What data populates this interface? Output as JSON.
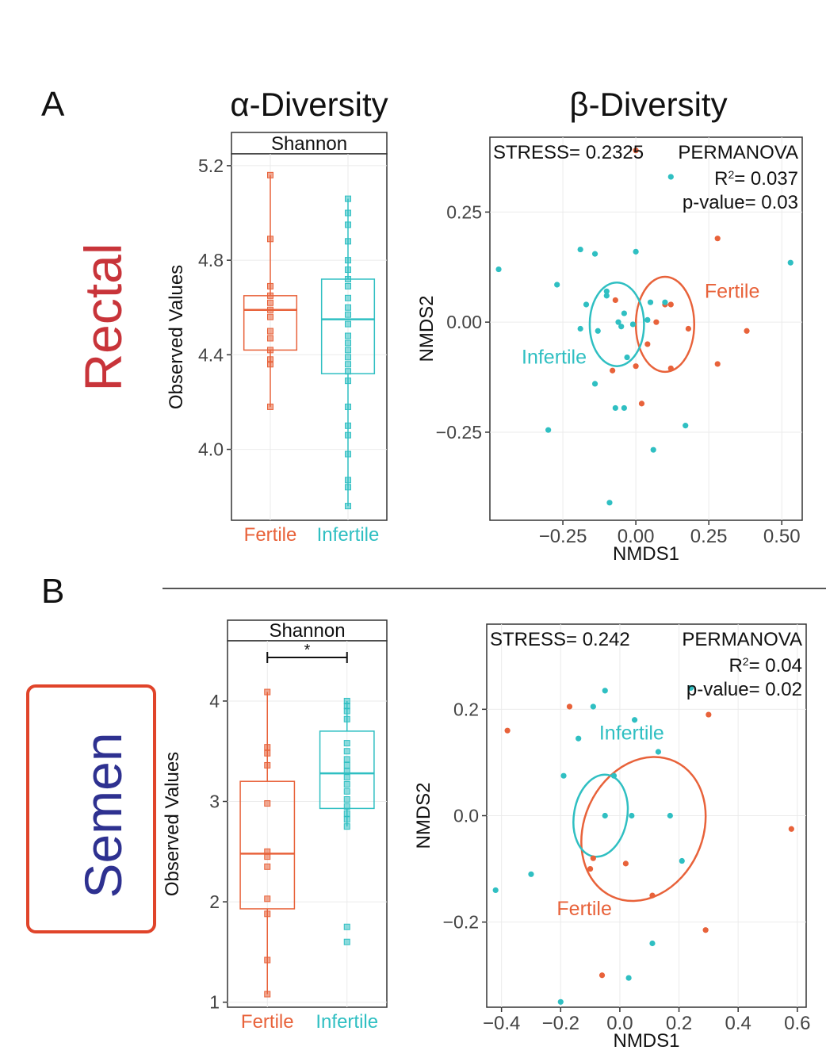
{
  "colors": {
    "fertile": "#E8623A",
    "infertile": "#2FBFC2",
    "rectal_label": "#C8343A",
    "semen_label": "#2E3190",
    "semen_box": "#E0442A",
    "axis": "#333333",
    "grid": "#EBEBEB"
  },
  "labels": {
    "panel_a": "A",
    "panel_b": "B",
    "alpha_heading": "α-Diversity",
    "beta_heading": "β-Diversity",
    "row_a": "Rectal",
    "row_b": "Semen"
  },
  "chart_data": [
    {
      "id": "rectal_alpha",
      "type": "box",
      "strip": "Shannon",
      "ylabel": "Observed Values",
      "ylim": [
        3.7,
        5.25
      ],
      "yticks": [
        4.0,
        4.4,
        4.8,
        5.2
      ],
      "yticklabels": [
        "4.0",
        "4.4",
        "4.8",
        "5.2"
      ],
      "categories": [
        "Fertile",
        "Infertile"
      ],
      "significance": "",
      "boxes": [
        {
          "group": "Fertile",
          "q1": 4.42,
          "median": 4.59,
          "q3": 4.65,
          "whisker_low": 4.18,
          "whisker_high": 5.16,
          "points": [
            5.16,
            4.89,
            4.69,
            4.65,
            4.62,
            4.59,
            4.56,
            4.5,
            4.47,
            4.42,
            4.38,
            4.36,
            4.18
          ]
        },
        {
          "group": "Infertile",
          "q1": 4.32,
          "median": 4.55,
          "q3": 4.72,
          "whisker_low": 3.76,
          "whisker_high": 5.06,
          "points": [
            5.06,
            5.0,
            4.95,
            4.88,
            4.8,
            4.76,
            4.72,
            4.69,
            4.64,
            4.6,
            4.57,
            4.53,
            4.48,
            4.45,
            4.42,
            4.39,
            4.36,
            4.33,
            4.29,
            4.18,
            4.1,
            4.06,
            3.98,
            3.87,
            3.84,
            3.76
          ]
        }
      ]
    },
    {
      "id": "rectal_beta",
      "type": "scatter",
      "xlabel": "NMDS1",
      "ylabel": "NMDS2",
      "xlim": [
        -0.5,
        0.57
      ],
      "ylim": [
        -0.45,
        0.42
      ],
      "xticks": [
        -0.25,
        0.0,
        0.25,
        0.5
      ],
      "xticklabels": [
        "−0.25",
        "0.00",
        "0.25",
        "0.50"
      ],
      "yticks": [
        -0.25,
        0.0,
        0.25
      ],
      "yticklabels": [
        "−0.25",
        "0.00",
        "0.25"
      ],
      "stats": {
        "stress": "STRESS= 0.2325",
        "test": "PERMANOVA",
        "r2_prefix": "R",
        "r2_sup": "2",
        "r2_value": "= 0.037",
        "pvalue": "p-value= 0.03"
      },
      "ellipse_labels": [
        {
          "text": "Fertile",
          "group": "Fertile",
          "x": 0.33,
          "y": 0.07
        },
        {
          "text": "Infertile",
          "group": "Infertile",
          "x": -0.28,
          "y": -0.08
        }
      ],
      "ellipses": [
        {
          "group": "Fertile",
          "cx": 0.1,
          "cy": -0.005,
          "rx": 0.1,
          "ry": 0.108
        },
        {
          "group": "Infertile",
          "cx": -0.065,
          "cy": -0.005,
          "rx": 0.093,
          "ry": 0.095
        }
      ],
      "series": [
        {
          "name": "Fertile",
          "points": [
            [
              0.0,
              0.39
            ],
            [
              0.28,
              0.19
            ],
            [
              0.38,
              -0.02
            ],
            [
              0.28,
              -0.095
            ],
            [
              0.18,
              -0.015
            ],
            [
              0.12,
              0.04
            ],
            [
              0.07,
              0.0
            ],
            [
              0.1,
              0.04
            ],
            [
              -0.07,
              0.05
            ],
            [
              -0.08,
              -0.11
            ],
            [
              0.0,
              -0.1
            ],
            [
              0.12,
              -0.105
            ],
            [
              0.02,
              -0.185
            ],
            [
              0.04,
              -0.05
            ]
          ]
        },
        {
          "name": "Infertile",
          "points": [
            [
              -0.47,
              0.12
            ],
            [
              -0.27,
              0.085
            ],
            [
              -0.19,
              0.165
            ],
            [
              -0.14,
              0.155
            ],
            [
              -0.17,
              0.04
            ],
            [
              -0.1,
              0.07
            ],
            [
              -0.04,
              0.02
            ],
            [
              -0.06,
              0.0
            ],
            [
              -0.19,
              -0.015
            ],
            [
              -0.13,
              -0.02
            ],
            [
              -0.03,
              -0.08
            ],
            [
              -0.07,
              -0.195
            ],
            [
              -0.04,
              -0.195
            ],
            [
              -0.14,
              -0.14
            ],
            [
              0.0,
              0.16
            ],
            [
              0.05,
              0.045
            ],
            [
              0.1,
              0.045
            ],
            [
              0.04,
              0.005
            ],
            [
              -0.01,
              -0.005
            ],
            [
              0.06,
              -0.29
            ],
            [
              0.17,
              -0.235
            ],
            [
              0.12,
              0.33
            ],
            [
              0.53,
              0.135
            ],
            [
              -0.3,
              -0.245
            ],
            [
              -0.09,
              -0.41
            ],
            [
              -0.1,
              0.06
            ],
            [
              -0.05,
              -0.01
            ]
          ]
        }
      ]
    },
    {
      "id": "semen_alpha",
      "type": "box",
      "strip": "Shannon",
      "ylabel": "Observed Values",
      "ylim": [
        0.95,
        4.6
      ],
      "yticks": [
        1,
        2,
        3,
        4
      ],
      "yticklabels": [
        "1",
        "2",
        "3",
        "4"
      ],
      "categories": [
        "Fertile",
        "Infertile"
      ],
      "significance": "*",
      "boxes": [
        {
          "group": "Fertile",
          "q1": 1.93,
          "median": 2.48,
          "q3": 3.2,
          "whisker_low": 1.08,
          "whisker_high": 4.09,
          "points": [
            4.09,
            3.54,
            3.48,
            3.36,
            2.98,
            2.5,
            2.45,
            2.35,
            2.03,
            1.88,
            1.42,
            1.08
          ]
        },
        {
          "group": "Infertile",
          "q1": 2.93,
          "median": 3.28,
          "q3": 3.7,
          "whisker_low": 2.75,
          "whisker_high": 4.0,
          "points": [
            4.0,
            3.95,
            3.9,
            3.82,
            3.58,
            3.5,
            3.42,
            3.36,
            3.3,
            3.24,
            3.17,
            3.1,
            3.02,
            2.95,
            2.88,
            2.82,
            2.75,
            1.75,
            1.6
          ]
        }
      ]
    },
    {
      "id": "semen_beta",
      "type": "scatter",
      "xlabel": "NMDS1",
      "ylabel": "NMDS2",
      "xlim": [
        -0.45,
        0.63
      ],
      "ylim": [
        -0.36,
        0.36
      ],
      "xticks": [
        -0.4,
        -0.2,
        0.0,
        0.2,
        0.4,
        0.6
      ],
      "xticklabels": [
        "−0.4",
        "−0.2",
        "0.0",
        "0.2",
        "0.4",
        "0.6"
      ],
      "yticks": [
        -0.2,
        0.0,
        0.2
      ],
      "yticklabels": [
        "−0.2",
        "0.0",
        "0.2"
      ],
      "stats": {
        "stress": "STRESS= 0.242",
        "test": "PERMANOVA",
        "r2_prefix": "R",
        "r2_sup": "2",
        "r2_value": "= 0.04",
        "pvalue": "p-value= 0.02"
      },
      "ellipse_labels": [
        {
          "text": "Fertile",
          "group": "Fertile",
          "x": -0.12,
          "y": -0.175
        },
        {
          "text": "Infertile",
          "group": "Infertile",
          "x": 0.04,
          "y": 0.155
        }
      ],
      "ellipses": [
        {
          "group": "Fertile",
          "cx": 0.08,
          "cy": -0.025,
          "rx": 0.2,
          "ry": 0.14,
          "rotate": 25
        },
        {
          "group": "Infertile",
          "cx": -0.065,
          "cy": 0.0,
          "rx": 0.14,
          "ry": 0.05,
          "rotate": -80
        }
      ],
      "series": [
        {
          "name": "Fertile",
          "points": [
            [
              -0.38,
              0.16
            ],
            [
              -0.17,
              0.205
            ],
            [
              0.3,
              0.19
            ],
            [
              0.58,
              -0.025
            ],
            [
              -0.09,
              -0.08
            ],
            [
              -0.1,
              -0.1
            ],
            [
              0.02,
              -0.09
            ],
            [
              0.11,
              -0.15
            ],
            [
              0.29,
              -0.215
            ],
            [
              -0.06,
              -0.3
            ]
          ]
        },
        {
          "name": "Infertile",
          "points": [
            [
              0.24,
              0.24
            ],
            [
              -0.05,
              0.235
            ],
            [
              -0.09,
              0.205
            ],
            [
              0.05,
              0.18
            ],
            [
              -0.14,
              0.145
            ],
            [
              0.13,
              0.12
            ],
            [
              -0.19,
              0.075
            ],
            [
              -0.02,
              0.075
            ],
            [
              -0.05,
              0.0
            ],
            [
              0.04,
              0.0
            ],
            [
              0.17,
              0.0
            ],
            [
              0.21,
              -0.085
            ],
            [
              -0.3,
              -0.11
            ],
            [
              -0.42,
              -0.14
            ],
            [
              0.11,
              -0.24
            ],
            [
              0.03,
              -0.305
            ],
            [
              -0.2,
              -0.35
            ]
          ]
        }
      ]
    }
  ]
}
